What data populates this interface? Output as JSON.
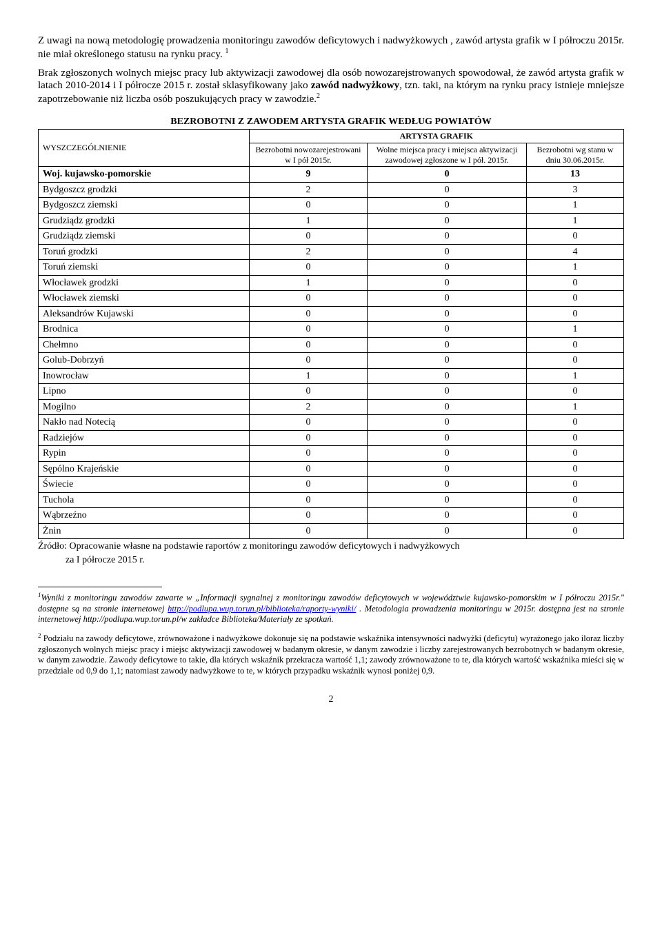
{
  "para1": "Z uwagi na nową metodologię  prowadzenia monitoringu zawodów deficytowych i nadwyżkowych , zawód artysta grafik w I półroczu 2015r. nie miał określonego statusu na rynku pracy. ",
  "para1_sup": "1",
  "para2_a": "Brak zgłoszonych wolnych miejsc pracy lub aktywizacji zawodowej dla osób nowozarejstrowanych spowodował, że zawód artysta grafik w latach 2010-2014 i I półrocze 2015 r. został sklasyfikowany jako ",
  "para2_b": "zawód nadwyżkowy",
  "para2_c": ", tzn. taki, na którym na rynku pracy istnieje mniejsze zapotrzebowanie niż liczba osób poszukujących pracy w zawodzie.",
  "para2_sup": "2",
  "table_title": "BEZROBOTNI Z ZAWODEM  ARTYSTA GRAFIK  WEDŁUG POWIATÓW",
  "headers": {
    "wysz": "WYSZCZEGÓLNIENIE",
    "group": "ARTYSTA GRAFIK",
    "col1": "Bezrobotni nowozarejestrowani w I pół 2015r.",
    "col2": "Wolne miejsca pracy i miejsca aktywizacji zawodowej zgłoszone w I pół. 2015r.",
    "col3": "Bezrobotni wg stanu w dniu 30.06.2015r."
  },
  "bold_row": {
    "label": "Woj. kujawsko-pomorskie",
    "v1": "9",
    "v2": "0",
    "v3": "13"
  },
  "rows": [
    {
      "label": "Bydgoszcz grodzki",
      "v1": "2",
      "v2": "0",
      "v3": "3"
    },
    {
      "label": "Bydgoszcz ziemski",
      "v1": "0",
      "v2": "0",
      "v3": "1"
    },
    {
      "label": "Grudziądz grodzki",
      "v1": "1",
      "v2": "0",
      "v3": "1"
    },
    {
      "label": "Grudziądz ziemski",
      "v1": "0",
      "v2": "0",
      "v3": "0"
    },
    {
      "label": "Toruń grodzki",
      "v1": "2",
      "v2": "0",
      "v3": "4"
    },
    {
      "label": "Toruń ziemski",
      "v1": "0",
      "v2": "0",
      "v3": "1"
    },
    {
      "label": "Włocławek grodzki",
      "v1": "1",
      "v2": "0",
      "v3": "0"
    },
    {
      "label": "Włocławek ziemski",
      "v1": "0",
      "v2": "0",
      "v3": "0"
    },
    {
      "label": "Aleksandrów Kujawski",
      "v1": "0",
      "v2": "0",
      "v3": "0"
    },
    {
      "label": "Brodnica",
      "v1": "0",
      "v2": "0",
      "v3": "1"
    },
    {
      "label": "Chełmno",
      "v1": "0",
      "v2": "0",
      "v3": "0"
    },
    {
      "label": "Golub-Dobrzyń",
      "v1": "0",
      "v2": "0",
      "v3": "0"
    },
    {
      "label": "Inowrocław",
      "v1": "1",
      "v2": "0",
      "v3": "1"
    },
    {
      "label": "Lipno",
      "v1": "0",
      "v2": "0",
      "v3": "0"
    },
    {
      "label": "Mogilno",
      "v1": "2",
      "v2": "0",
      "v3": "1"
    },
    {
      "label": "Nakło nad Notecią",
      "v1": "0",
      "v2": "0",
      "v3": "0"
    },
    {
      "label": "Radziejów",
      "v1": "0",
      "v2": "0",
      "v3": "0"
    },
    {
      "label": "Rypin",
      "v1": "0",
      "v2": "0",
      "v3": "0"
    },
    {
      "label": "Sępólno Krajeńskie",
      "v1": "0",
      "v2": "0",
      "v3": "0"
    },
    {
      "label": "Świecie",
      "v1": "0",
      "v2": "0",
      "v3": "0"
    },
    {
      "label": "Tuchola",
      "v1": "0",
      "v2": "0",
      "v3": "0"
    },
    {
      "label": "Wąbrzeźno",
      "v1": "0",
      "v2": "0",
      "v3": "0"
    },
    {
      "label": "Żnin",
      "v1": "0",
      "v2": "0",
      "v3": "0"
    }
  ],
  "source_line1": "Źródło: Opracowanie własne na podstawie raportów z monitoringu zawodów deficytowych i nadwyżkowych",
  "source_line2": "za  I półrocze  2015 r.",
  "footnote1": {
    "num": "1",
    "pre": "Wyniki z monitoringu zawodów zawarte  w „Informacji sygnalnej z monitoringu zawodów deficytowych w województwie kujawsko-pomorskim w I półroczu 2015r.\" dostępne są na stronie internetowej ",
    "link": "http://podlupa.wup.torun.pl/biblioteka/raporty-wyniki/",
    "post": " . Metodologia prowadzenia monitoringu w 2015r. dostępna jest na stronie internetowej http://podlupa.wup.torun.pl/w zakładce Biblioteka/Materiały ze spotkań."
  },
  "footnote2": {
    "num": "2",
    "text": " Podziału na zawody deficytowe, zrównoważone i nadwyżkowe dokonuje się na podstawie wskaźnika intensywności nadwyżki (deficytu) wyrażonego jako iloraz liczby zgłoszonych wolnych miejsc pracy i miejsc aktywizacji zawodowej w badanym okresie, w danym zawodzie i liczby zarejestrowanych bezrobotnych  w badanym okresie, w danym zawodzie. Zawody deficytowe to takie, dla których wskaźnik przekracza wartość 1,1; zawody zrównoważone to te, dla których wartość wskaźnika mieści się w przedziale od 0,9 do 1,1; natomiast zawody nadwyżkowe to te, w których przypadku wskaźnik wynosi poniżej 0,9."
  },
  "page_number": "2"
}
